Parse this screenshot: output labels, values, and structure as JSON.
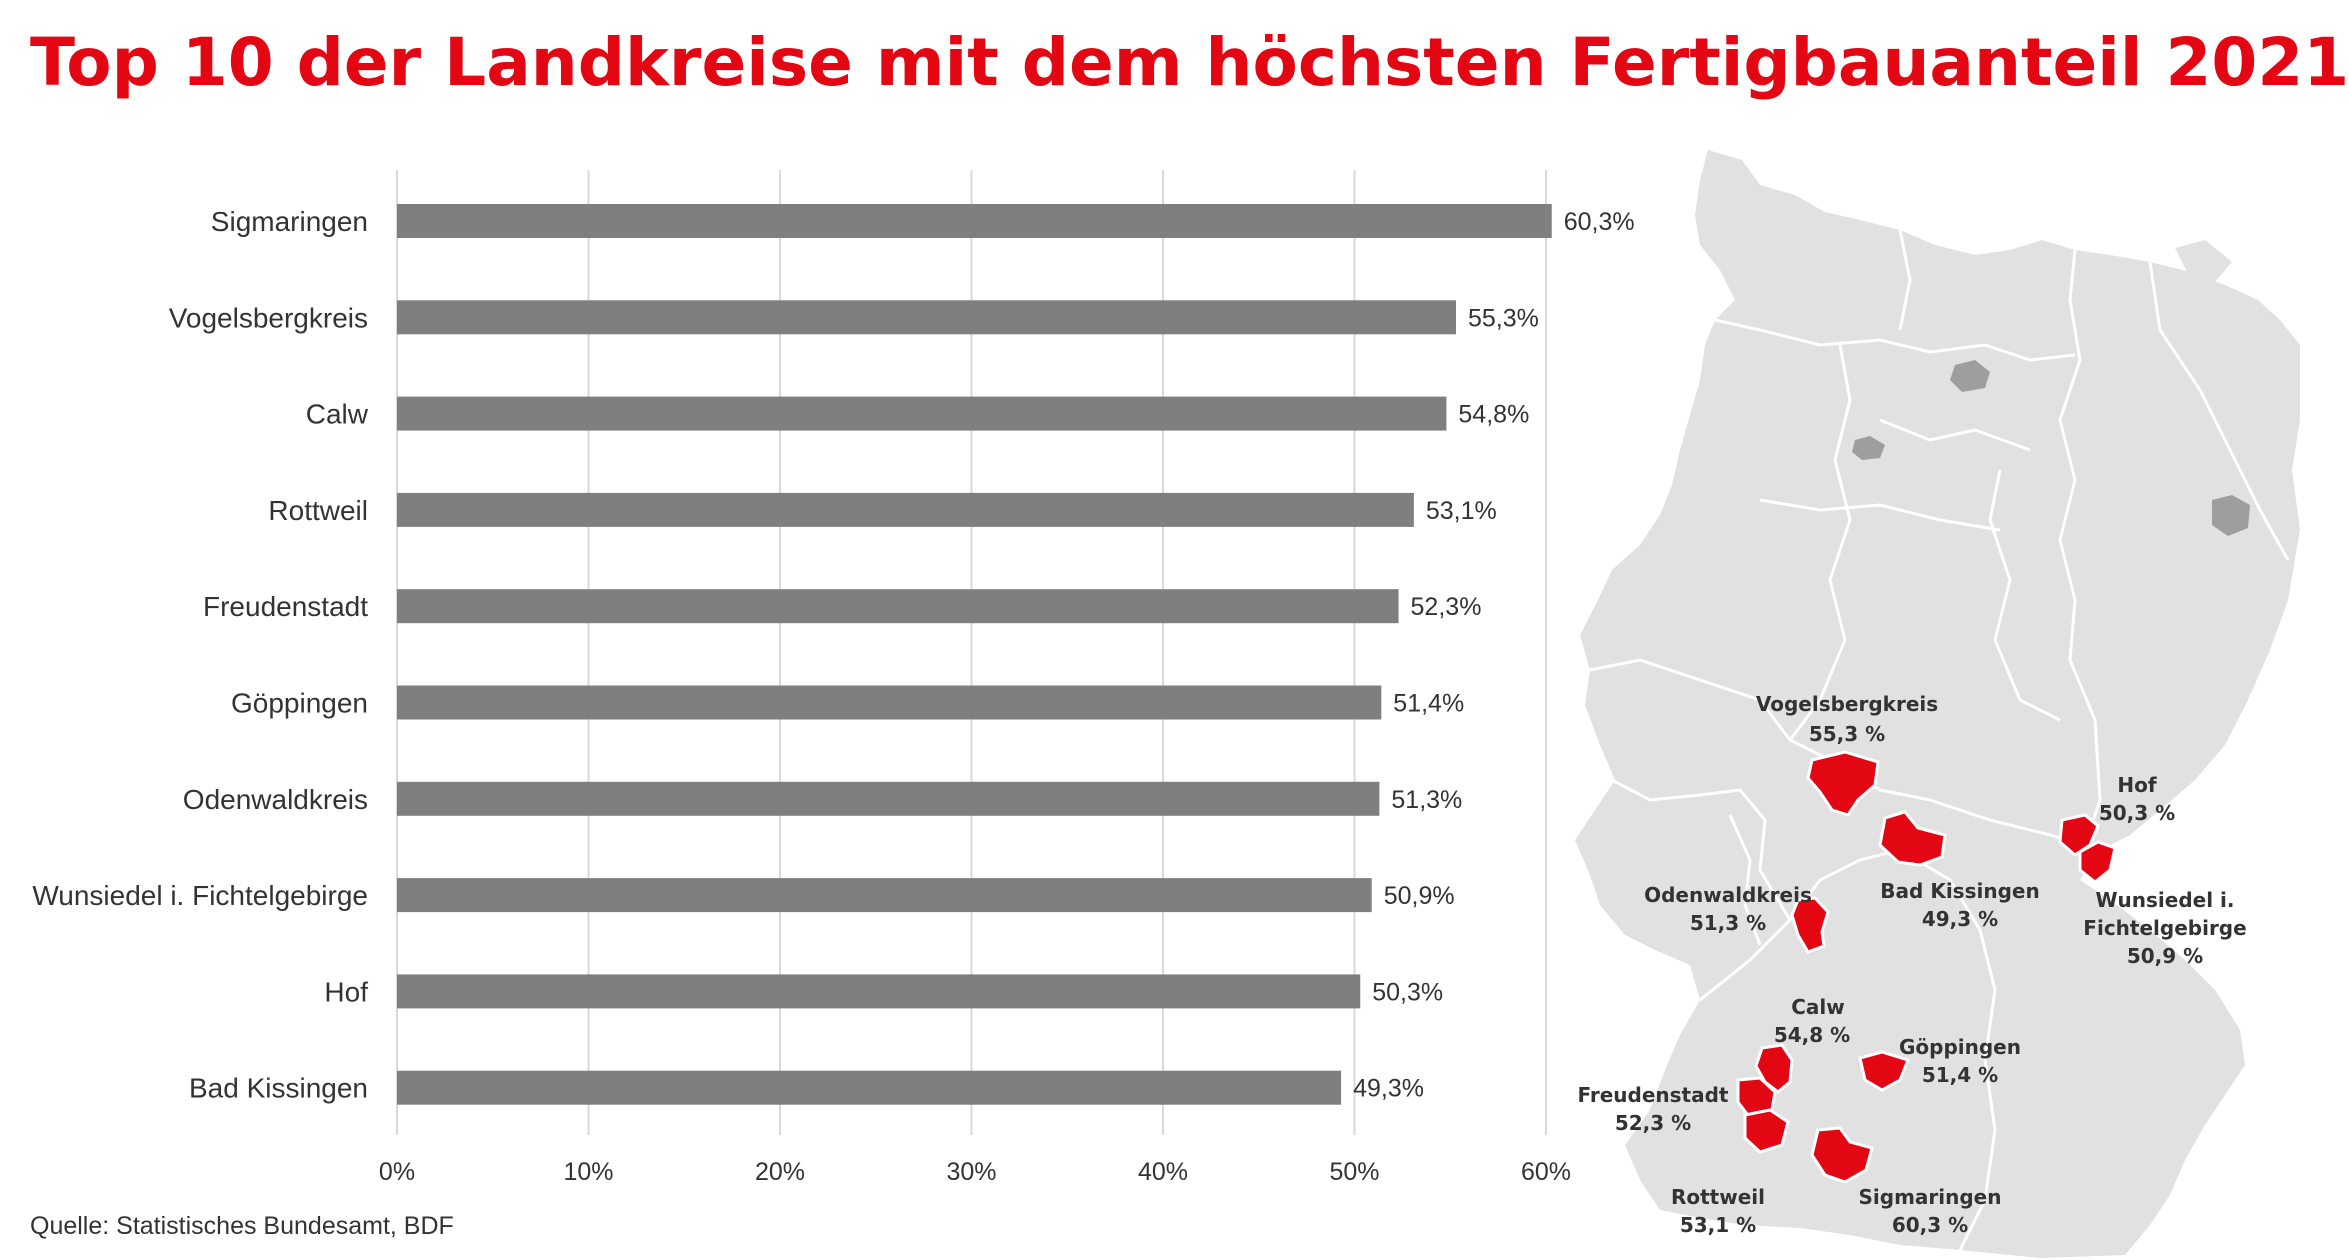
{
  "title": "Top 10 der Landkreise mit dem höchsten Fertigbauanteil 2021",
  "source": "Quelle: Statistisches Bundesamt, BDF",
  "colors": {
    "accent": "#e30613",
    "bar": "#7f7f7f",
    "grid": "#d9d9d9",
    "map_land": "#e1e1e1",
    "map_city": "#9e9e9e"
  },
  "chart_data": {
    "type": "bar",
    "orientation": "horizontal",
    "categories": [
      "Sigmaringen",
      "Vogelsbergkreis",
      "Calw",
      "Rottweil",
      "Freudenstadt",
      "Göppingen",
      "Odenwaldkreis",
      "Wunsiedel i. Fichtelgebirge",
      "Hof",
      "Bad Kissingen"
    ],
    "values": [
      60.3,
      55.3,
      54.8,
      53.1,
      52.3,
      51.4,
      51.3,
      50.9,
      50.3,
      49.3
    ],
    "value_labels": [
      "60,3%",
      "55,3%",
      "54,8%",
      "53,1%",
      "52,3%",
      "51,4%",
      "51,3%",
      "50,9%",
      "50,3%",
      "49,3%"
    ],
    "xlim": [
      0,
      60
    ],
    "xticks": [
      0,
      10,
      20,
      30,
      40,
      50,
      60
    ],
    "xtick_labels": [
      "0%",
      "10%",
      "20%",
      "30%",
      "40%",
      "50%",
      "60%"
    ],
    "xlabel": "",
    "ylabel": "",
    "grid": "vertical",
    "legend": "none"
  },
  "map": {
    "labels": [
      {
        "id": "vogelsbergkreis",
        "name": "Vogelsbergkreis",
        "value": "55,3 %"
      },
      {
        "id": "hof",
        "name": "Hof",
        "value": "50,3 %"
      },
      {
        "id": "bad-kissingen",
        "name": "Bad Kissingen",
        "value": "49,3 %"
      },
      {
        "id": "odenwaldkreis",
        "name": "Odenwaldkreis",
        "value": "51,3 %"
      },
      {
        "id": "wunsiedel",
        "name": "Wunsiedel i.",
        "name2": "Fichtelgebirge",
        "value": "50,9 %"
      },
      {
        "id": "calw",
        "name": "Calw",
        "value": "54,8 %"
      },
      {
        "id": "goeppingen",
        "name": "Göppingen",
        "value": "51,4 %"
      },
      {
        "id": "freudenstadt",
        "name": "Freudenstadt",
        "value": "52,3 %"
      },
      {
        "id": "rottweil",
        "name": "Rottweil",
        "value": "53,1 %"
      },
      {
        "id": "sigmaringen",
        "name": "Sigmaringen",
        "value": "60,3 %"
      }
    ]
  }
}
